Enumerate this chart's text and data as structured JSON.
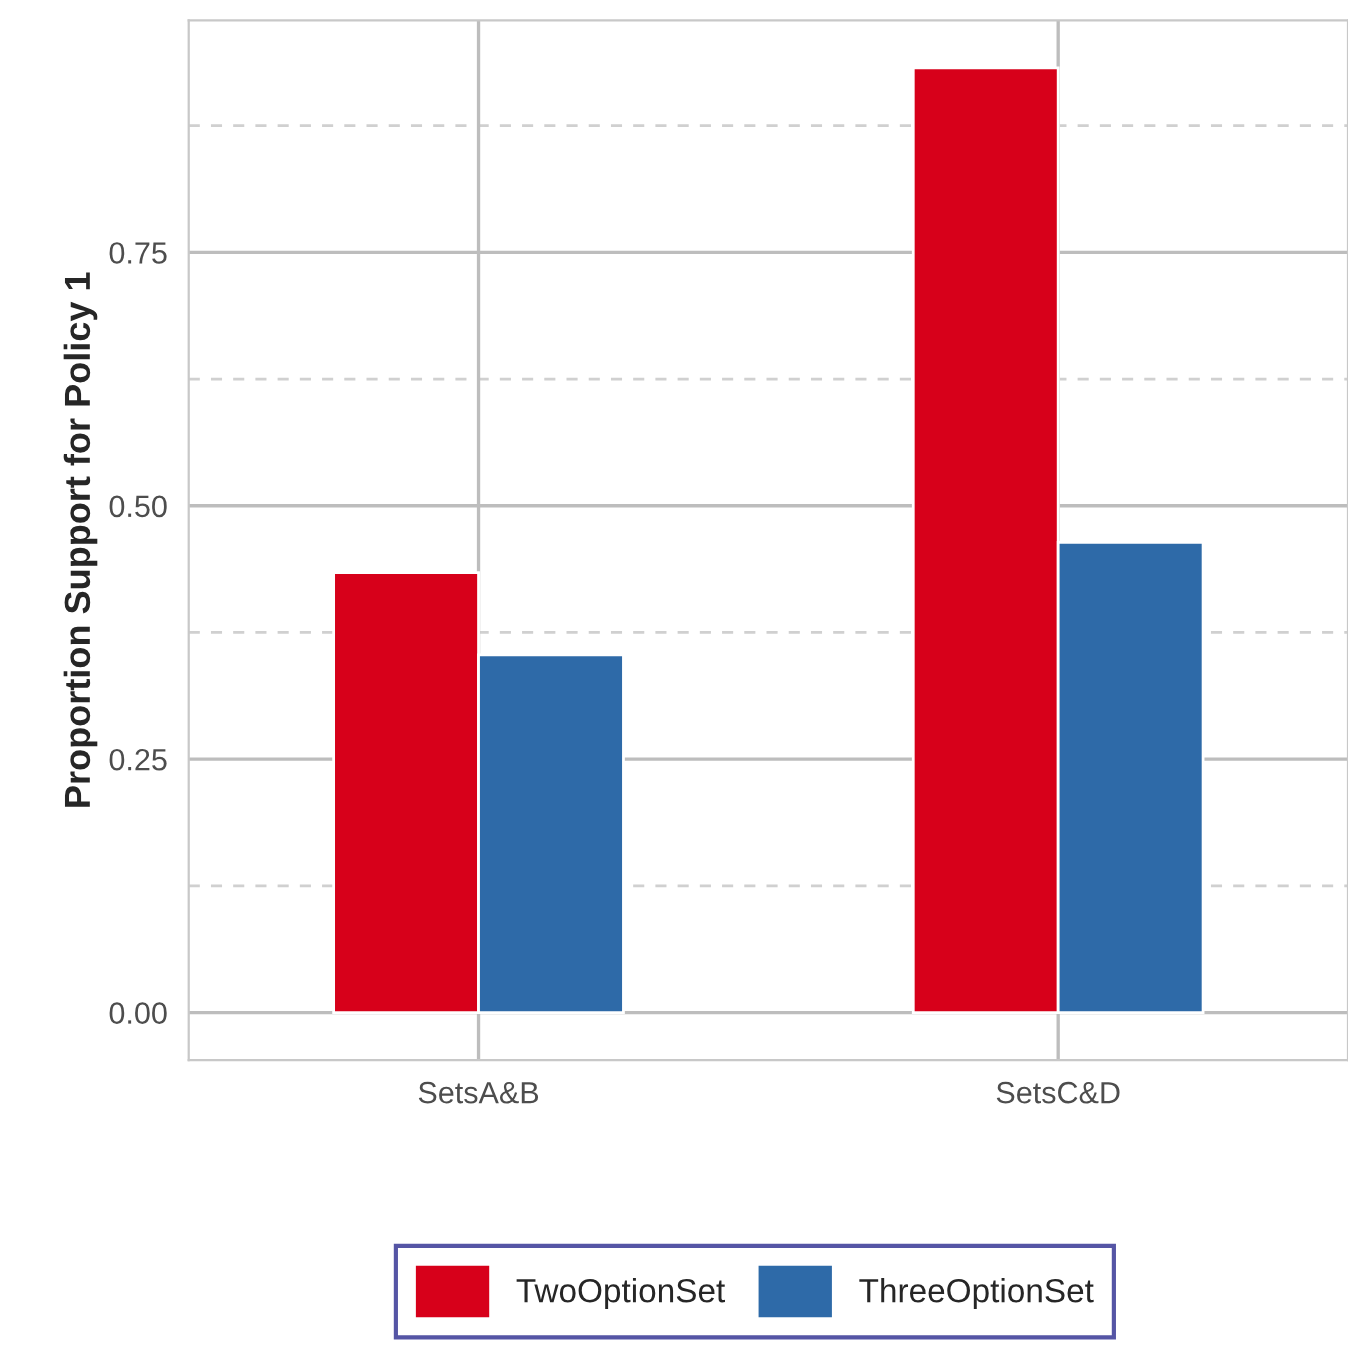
{
  "chart_data": {
    "type": "bar",
    "ylabel": "Proportion Support for Policy 1",
    "categories": [
      "SetsA&B",
      "SetsC&D"
    ],
    "series": [
      {
        "name": "TwoOptionSet",
        "color": "#d7001a",
        "values": [
          0.434,
          0.932
        ]
      },
      {
        "name": "ThreeOptionSet",
        "color": "#2e6aa8",
        "values": [
          0.353,
          0.464
        ]
      }
    ],
    "ylim": [
      -0.047,
      0.979
    ],
    "yticks": [
      {
        "value": 0,
        "label": "0.00"
      },
      {
        "value": 0.125,
        "label": null
      },
      {
        "value": 0.25,
        "label": "0.25"
      },
      {
        "value": 0.375,
        "label": null
      },
      {
        "value": 0.5,
        "label": "0.50"
      },
      {
        "value": 0.625,
        "label": null
      },
      {
        "value": 0.75,
        "label": "0.75"
      },
      {
        "value": 0.875,
        "label": null
      }
    ],
    "grid": true,
    "legend": "bottom"
  }
}
